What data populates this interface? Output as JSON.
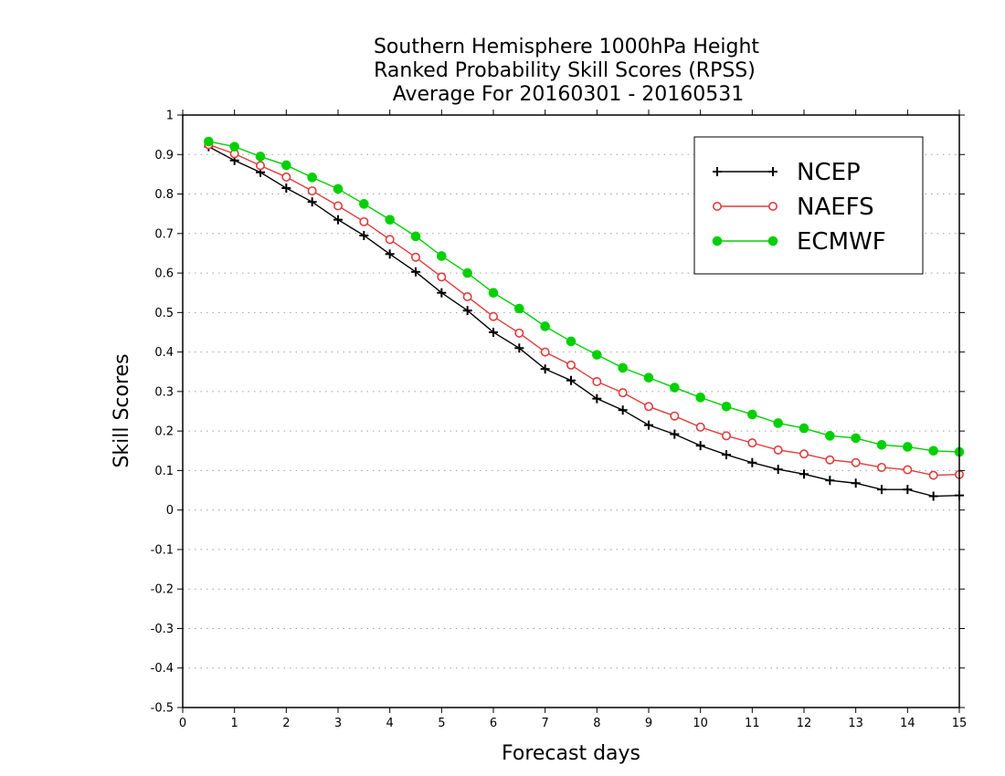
{
  "chart_data": {
    "type": "line",
    "title": [
      "Southern Hemisphere 1000hPa Height",
      "Ranked Probability Skill Scores (RPSS)",
      "Average For 20160301 - 20160531"
    ],
    "xlabel": "Forecast days",
    "ylabel": "Skill Scores",
    "xlim": [
      0,
      15
    ],
    "ylim": [
      -0.5,
      1
    ],
    "x_ticks": [
      0,
      1,
      2,
      3,
      4,
      5,
      6,
      7,
      8,
      9,
      10,
      11,
      12,
      13,
      14,
      15
    ],
    "y_ticks": [
      -0.5,
      -0.4,
      -0.3,
      -0.2,
      -0.1,
      0,
      0.1,
      0.2,
      0.3,
      0.4,
      0.5,
      0.6,
      0.7,
      0.8,
      0.9,
      1
    ],
    "grid": "horizontal-dotted",
    "legend_position": "top-right",
    "x": [
      0.5,
      1,
      1.5,
      2,
      2.5,
      3,
      3.5,
      4,
      4.5,
      5,
      5.5,
      6,
      6.5,
      7,
      7.5,
      8,
      8.5,
      9,
      9.5,
      10,
      10.5,
      11,
      11.5,
      12,
      12.5,
      13,
      13.5,
      14,
      14.5,
      15
    ],
    "series": [
      {
        "name": "NCEP",
        "color": "#000000",
        "marker": "plus",
        "values": [
          0.92,
          0.885,
          0.855,
          0.815,
          0.78,
          0.735,
          0.695,
          0.648,
          0.603,
          0.55,
          0.505,
          0.45,
          0.41,
          0.357,
          0.328,
          0.282,
          0.253,
          0.215,
          0.192,
          0.163,
          0.14,
          0.12,
          0.103,
          0.091,
          0.075,
          0.068,
          0.052,
          0.052,
          0.035,
          0.037
        ]
      },
      {
        "name": "NAEFS",
        "color": "#e03c3c",
        "marker": "open-circle",
        "values": [
          0.925,
          0.902,
          0.872,
          0.843,
          0.808,
          0.77,
          0.73,
          0.685,
          0.64,
          0.59,
          0.54,
          0.49,
          0.448,
          0.4,
          0.367,
          0.325,
          0.297,
          0.262,
          0.238,
          0.21,
          0.188,
          0.17,
          0.152,
          0.142,
          0.127,
          0.12,
          0.108,
          0.102,
          0.088,
          0.09
        ]
      },
      {
        "name": "ECMWF",
        "color": "#00d000",
        "marker": "filled-circle",
        "values": [
          0.933,
          0.92,
          0.895,
          0.873,
          0.842,
          0.813,
          0.775,
          0.735,
          0.693,
          0.643,
          0.6,
          0.55,
          0.51,
          0.465,
          0.427,
          0.393,
          0.36,
          0.335,
          0.31,
          0.285,
          0.262,
          0.242,
          0.22,
          0.207,
          0.188,
          0.182,
          0.165,
          0.16,
          0.15,
          0.147
        ]
      }
    ]
  }
}
